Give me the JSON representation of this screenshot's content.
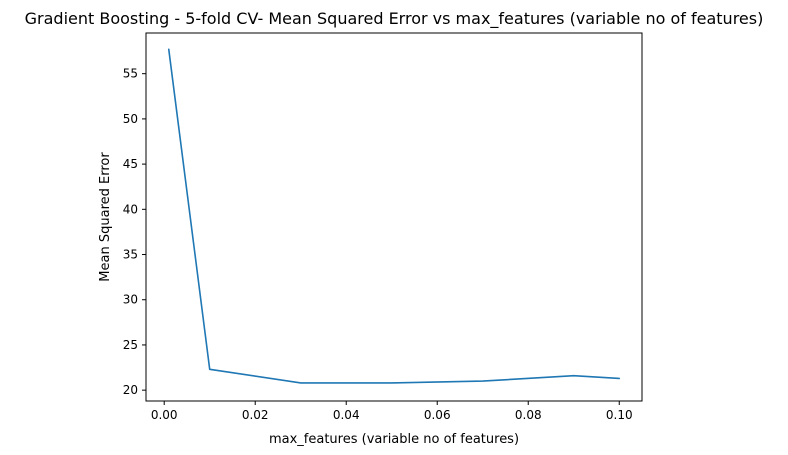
{
  "chart_data": {
    "type": "line",
    "title": "Gradient Boosting - 5-fold CV- Mean Squared Error vs max_features (variable no of features)",
    "xlabel": "max_features (variable no of features)",
    "ylabel": "Mean Squared Error",
    "xlim": [
      -0.004,
      0.105
    ],
    "ylim": [
      18.8,
      59.5
    ],
    "xticks": [
      0.0,
      0.02,
      0.04,
      0.06,
      0.08,
      0.1
    ],
    "xtick_labels": [
      "0.00",
      "0.02",
      "0.04",
      "0.06",
      "0.08",
      "0.10"
    ],
    "yticks": [
      20,
      25,
      30,
      35,
      40,
      45,
      50,
      55
    ],
    "ytick_labels": [
      "20",
      "25",
      "30",
      "35",
      "40",
      "45",
      "50",
      "55"
    ],
    "grid": false,
    "legend": false,
    "series": [
      {
        "color": "#1f77b4",
        "x": [
          0.001,
          0.01,
          0.03,
          0.05,
          0.07,
          0.09,
          0.1
        ],
        "y": [
          57.7,
          22.3,
          20.8,
          20.8,
          21.0,
          21.6,
          21.3
        ]
      }
    ]
  }
}
